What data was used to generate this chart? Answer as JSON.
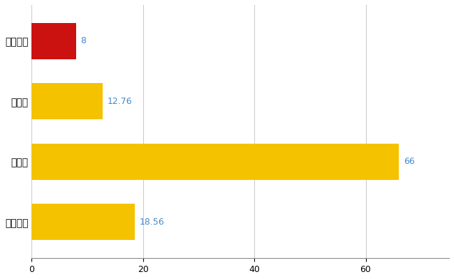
{
  "categories": [
    "揖斐川町",
    "県平均",
    "県最大",
    "全国平均"
  ],
  "values": [
    8,
    12.76,
    66,
    18.56
  ],
  "bar_colors": [
    "#cc1111",
    "#f5c200",
    "#f5c200",
    "#f5c200"
  ],
  "value_labels": [
    "8",
    "12.76",
    "66",
    "18.56"
  ],
  "value_color": "#4488cc",
  "xlim": [
    0,
    75
  ],
  "xticks": [
    0,
    20,
    40,
    60
  ],
  "grid_color": "#cccccc",
  "bg_color": "#ffffff",
  "bar_height": 0.6
}
